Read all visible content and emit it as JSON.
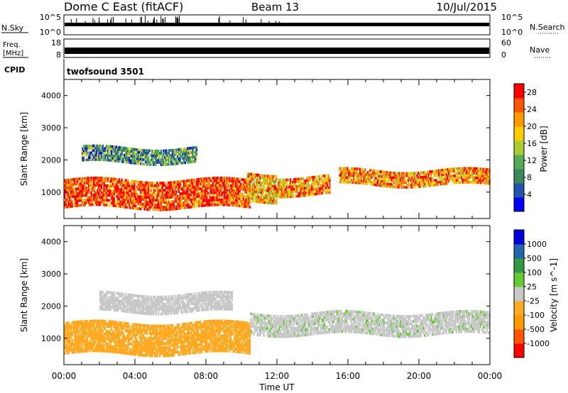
{
  "header": {
    "title": "Dome C East (fitACF)",
    "beam": "Beam 13",
    "date": "10/Jul/2015"
  },
  "noise_panel": {
    "left_label": "N.Sky",
    "right_label": "N.Search",
    "left_ticks": [
      "10^5",
      "10^0"
    ],
    "right_ticks": [
      "10^5",
      "10^0"
    ]
  },
  "freq_panel": {
    "left_label_1": "Freq.",
    "left_label_2": "[MHz]",
    "right_label": "Nave",
    "left_ticks": [
      "18",
      "8"
    ],
    "right_ticks": [
      "60",
      "0"
    ]
  },
  "cpid_panel": {
    "label": "CPID",
    "value": "twofsound 3501"
  },
  "x_axis": {
    "label": "Time UT",
    "ticks": [
      "00:00",
      "04:00",
      "08:00",
      "12:00",
      "16:00",
      "20:00",
      "00:00"
    ]
  },
  "colors": {
    "power": [
      "#0000ff",
      "#2255aa",
      "#3a8a5a",
      "#55aa55",
      "#aacc33",
      "#ffcc00",
      "#ff9900",
      "#ff5500",
      "#ff0000"
    ],
    "velocity": [
      "#ff0000",
      "#ff5500",
      "#ff9900",
      "#ffaa22",
      "#c8c8c8",
      "#66cc33",
      "#339944",
      "#2266aa",
      "#0000dd"
    ]
  },
  "chart_data": [
    {
      "type": "heatmap",
      "title": "Power",
      "ylabel": "Slant Range [km]",
      "xlabel": "",
      "ylim": [
        180,
        4500
      ],
      "y_ticks": [
        1000,
        2000,
        3000,
        4000
      ],
      "x_range_hours": [
        0,
        24
      ],
      "colorbar": {
        "label": "Power [dB]",
        "ticks": [
          "4",
          "8",
          "12",
          "16",
          "20",
          "24",
          "28"
        ],
        "range": [
          0,
          30
        ]
      },
      "bands": [
        {
          "t_start": 0.0,
          "t_end": 10.5,
          "range_start": 500,
          "range_end": 1400,
          "value": 26
        },
        {
          "t_start": 10.3,
          "t_end": 12.0,
          "range_start": 700,
          "range_end": 1600,
          "value": 20
        },
        {
          "t_start": 12.0,
          "t_end": 15.0,
          "range_start": 900,
          "range_end": 1500,
          "value": 22
        },
        {
          "t_start": 15.5,
          "t_end": 24.0,
          "range_start": 1200,
          "range_end": 1700,
          "value": 22
        },
        {
          "t_start": 1.0,
          "t_end": 7.5,
          "range_start": 1900,
          "range_end": 2400,
          "value": 10
        }
      ]
    },
    {
      "type": "heatmap",
      "title": "Velocity",
      "ylabel": "Slant Range [km]",
      "xlabel": "Time UT",
      "ylim": [
        180,
        4500
      ],
      "y_ticks": [
        1000,
        2000,
        3000,
        4000
      ],
      "x_range_hours": [
        0,
        24
      ],
      "colorbar": {
        "label": "Velocity [m s^-1]",
        "ticks": [
          "1000",
          "500",
          "100",
          "25",
          "-25",
          "-100",
          "-500",
          "-1000"
        ],
        "range": [
          -1000,
          1000
        ]
      },
      "bands": [
        {
          "t_start": 0.0,
          "t_end": 10.5,
          "range_start": 500,
          "range_end": 1500,
          "value": -200
        },
        {
          "t_start": 2.0,
          "t_end": 9.5,
          "range_start": 1800,
          "range_end": 2400,
          "value": 0
        },
        {
          "t_start": 10.5,
          "t_end": 24.0,
          "range_start": 1100,
          "range_end": 1800,
          "value": 50
        }
      ]
    }
  ]
}
